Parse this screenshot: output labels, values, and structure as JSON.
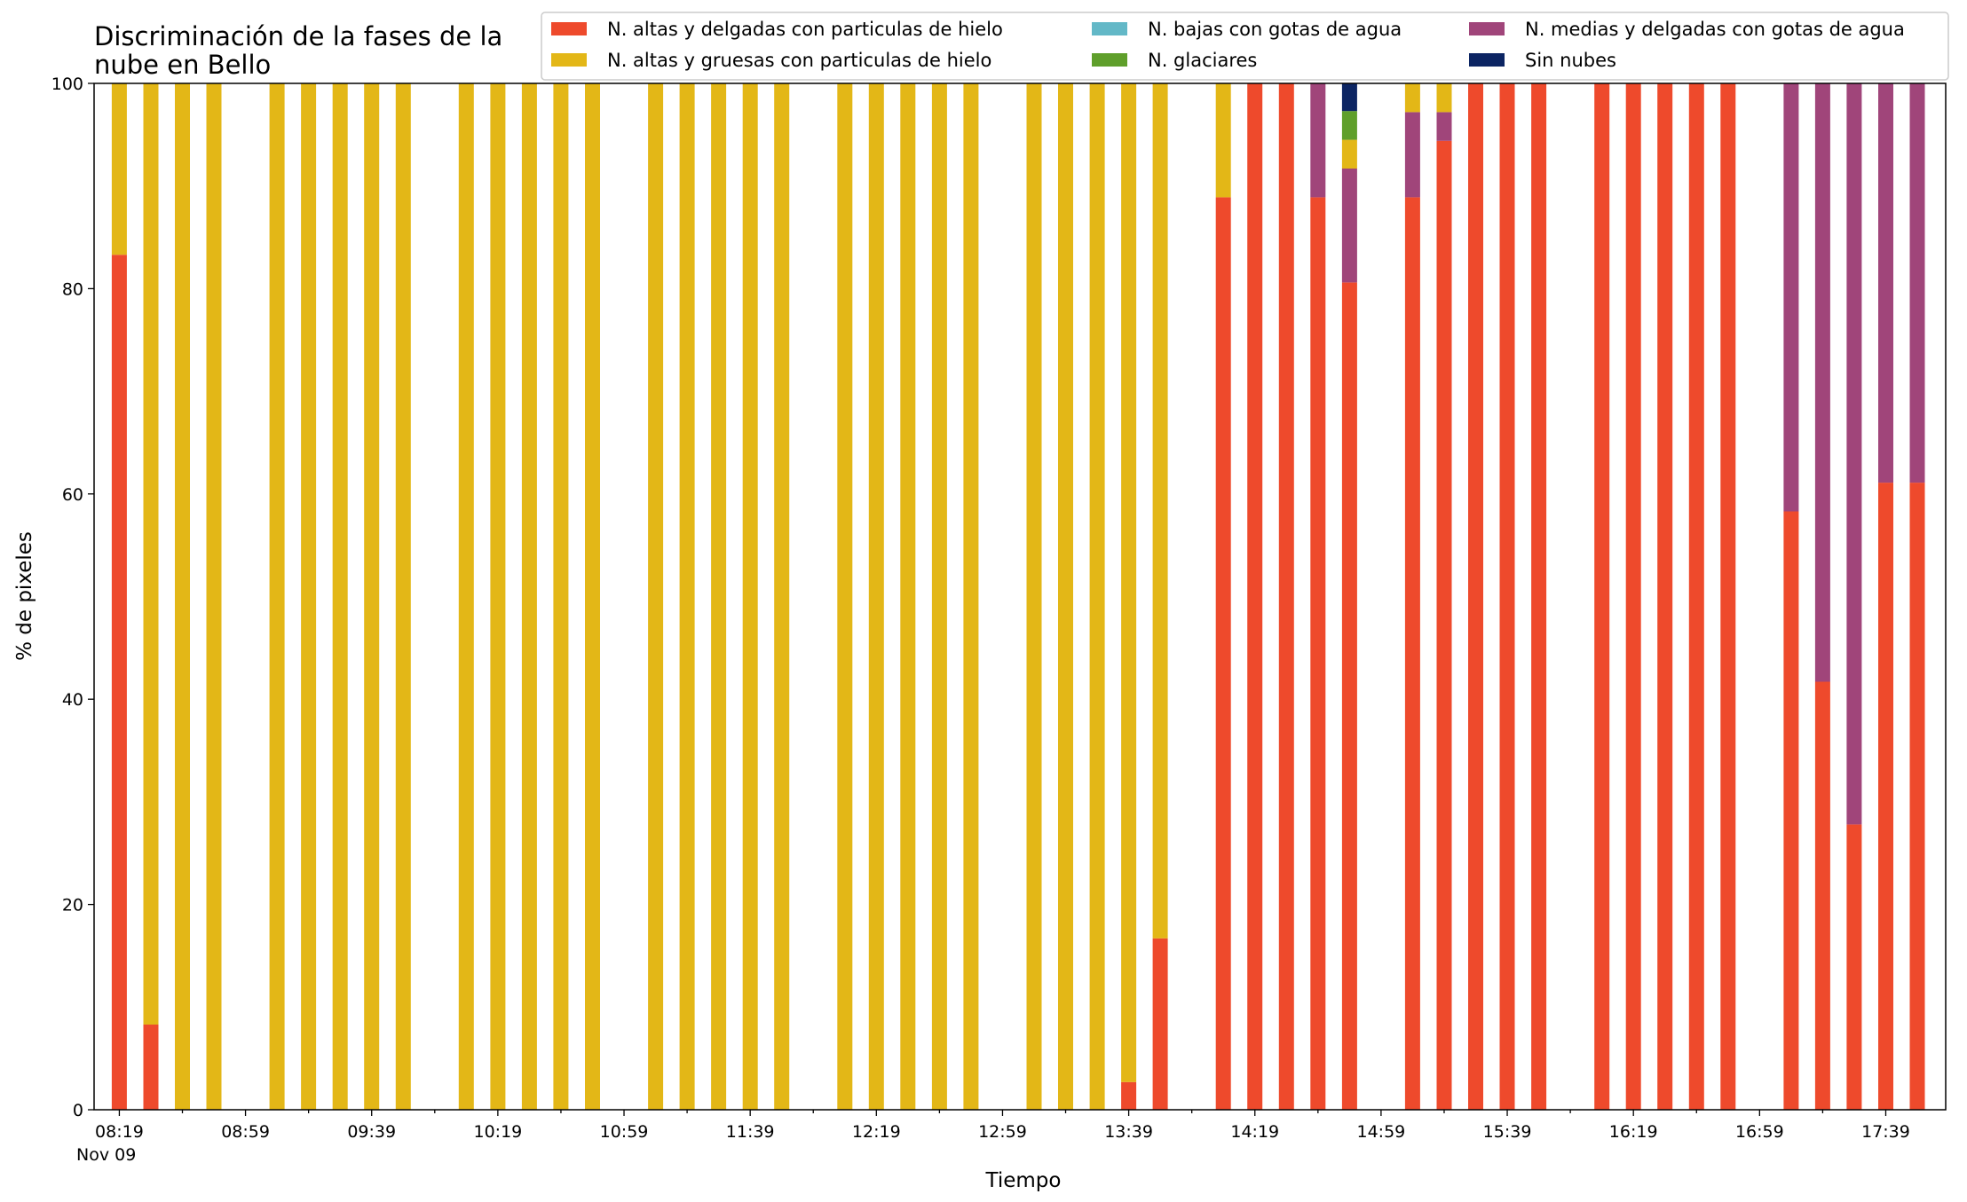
{
  "chart_data": {
    "type": "bar",
    "stacked": true,
    "title": "Discriminación de la fases de la nube en Bello",
    "title_lines": [
      "Discriminación de la fases de la",
      "nube en Bello"
    ],
    "xlabel": "Tiempo",
    "ylabel": "% de pixeles",
    "ylim": [
      0,
      100
    ],
    "yticks": [
      0,
      20,
      40,
      60,
      80,
      100
    ],
    "legend_position": "top-right",
    "date_label": "Nov 09",
    "xticks": [
      "08:19",
      "08:59",
      "09:39",
      "10:19",
      "10:59",
      "11:39",
      "12:19",
      "12:59",
      "13:39",
      "14:19",
      "14:59",
      "15:39",
      "16:19",
      "16:59",
      "17:39"
    ],
    "legend_order": [
      0,
      3,
      1,
      4,
      2,
      5
    ],
    "series": [
      {
        "name": "N. altas y delgadas con particulas de hielo",
        "color": "#ee4a2c"
      },
      {
        "name": "N. bajas con gotas de agua",
        "color": "#63b8c7"
      },
      {
        "name": "N. medias y delgadas con gotas de agua",
        "color": "#a0457a"
      },
      {
        "name": "N. altas y gruesas con particulas de hielo",
        "color": "#e3b717"
      },
      {
        "name": "N. glaciares",
        "color": "#5f9f2b"
      },
      {
        "name": "Sin nubes",
        "color": "#0c2563"
      }
    ],
    "x": [
      "08:19",
      "08:29",
      "08:39",
      "08:49",
      "09:09",
      "09:19",
      "09:29",
      "09:39",
      "09:49",
      "10:09",
      "10:19",
      "10:29",
      "10:39",
      "10:49",
      "11:09",
      "11:19",
      "11:29",
      "11:39",
      "11:49",
      "12:09",
      "12:19",
      "12:29",
      "12:39",
      "12:49",
      "13:09",
      "13:19",
      "13:29",
      "13:39",
      "13:49",
      "14:09",
      "14:19",
      "14:29",
      "14:39",
      "14:49",
      "15:09",
      "15:19",
      "15:29",
      "15:39",
      "15:49",
      "16:09",
      "16:19",
      "16:29",
      "16:39",
      "16:49",
      "17:09",
      "17:19",
      "17:29",
      "17:39",
      "17:49"
    ],
    "stacks": [
      [
        83.3,
        0,
        0,
        16.7,
        0,
        0
      ],
      [
        8.3,
        0,
        0,
        91.7,
        0,
        0
      ],
      [
        0,
        0,
        0,
        100,
        0,
        0
      ],
      [
        0,
        0,
        0,
        100,
        0,
        0
      ],
      [
        0,
        0,
        0,
        100,
        0,
        0
      ],
      [
        0,
        0,
        0,
        100,
        0,
        0
      ],
      [
        0,
        0,
        0,
        100,
        0,
        0
      ],
      [
        0,
        0,
        0,
        100,
        0,
        0
      ],
      [
        0,
        0,
        0,
        100,
        0,
        0
      ],
      [
        0,
        0,
        0,
        100,
        0,
        0
      ],
      [
        0,
        0,
        0,
        100,
        0,
        0
      ],
      [
        0,
        0,
        0,
        100,
        0,
        0
      ],
      [
        0,
        0,
        0,
        100,
        0,
        0
      ],
      [
        0,
        0,
        0,
        100,
        0,
        0
      ],
      [
        0,
        0,
        0,
        100,
        0,
        0
      ],
      [
        0,
        0,
        0,
        100,
        0,
        0
      ],
      [
        0,
        0,
        0,
        100,
        0,
        0
      ],
      [
        0,
        0,
        0,
        100,
        0,
        0
      ],
      [
        0,
        0,
        0,
        100,
        0,
        0
      ],
      [
        0,
        0,
        0,
        100,
        0,
        0
      ],
      [
        0,
        0,
        0,
        100,
        0,
        0
      ],
      [
        0,
        0,
        0,
        100,
        0,
        0
      ],
      [
        0,
        0,
        0,
        100,
        0,
        0
      ],
      [
        0,
        0,
        0,
        100,
        0,
        0
      ],
      [
        0,
        0,
        0,
        100,
        0,
        0
      ],
      [
        0,
        0,
        0,
        100,
        0,
        0
      ],
      [
        0,
        0,
        0,
        100,
        0,
        0
      ],
      [
        2.7,
        0,
        0,
        97.3,
        0,
        0
      ],
      [
        16.7,
        0,
        0,
        83.3,
        0,
        0
      ],
      [
        88.9,
        0,
        0,
        11.1,
        0,
        0
      ],
      [
        100,
        0,
        0,
        0,
        0,
        0
      ],
      [
        100,
        0,
        0,
        0,
        0,
        0
      ],
      [
        88.9,
        0,
        11.1,
        0,
        0,
        0
      ],
      [
        80.6,
        0,
        11.1,
        2.8,
        2.8,
        2.7
      ],
      [
        88.9,
        0,
        8.3,
        2.8,
        0,
        0
      ],
      [
        94.4,
        0,
        2.8,
        2.8,
        0,
        0
      ],
      [
        100,
        0,
        0,
        0,
        0,
        0
      ],
      [
        100,
        0,
        0,
        0,
        0,
        0
      ],
      [
        100,
        0,
        0,
        0,
        0,
        0
      ],
      [
        100,
        0,
        0,
        0,
        0,
        0
      ],
      [
        100,
        0,
        0,
        0,
        0,
        0
      ],
      [
        100,
        0,
        0,
        0,
        0,
        0
      ],
      [
        100,
        0,
        0,
        0,
        0,
        0
      ],
      [
        100,
        0,
        0,
        0,
        0,
        0
      ],
      [
        58.3,
        0,
        41.7,
        0,
        0,
        0
      ],
      [
        41.7,
        0,
        58.3,
        0,
        0,
        0
      ],
      [
        27.8,
        0,
        72.2,
        0,
        0,
        0
      ],
      [
        61.1,
        0,
        38.9,
        0,
        0,
        0
      ],
      [
        61.1,
        0,
        38.9,
        0,
        0,
        0
      ]
    ]
  }
}
